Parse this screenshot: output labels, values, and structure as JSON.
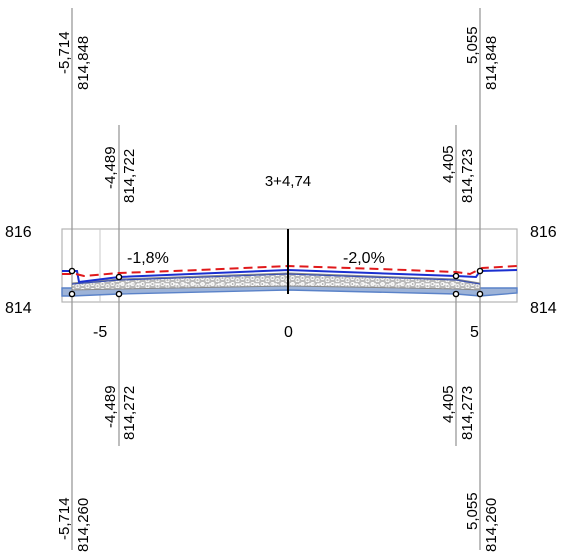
{
  "station": "3+4,74",
  "slopes": {
    "left": "-1,8%",
    "right": "-2,0%"
  },
  "elevation_ticks": {
    "top": "816",
    "bottom": "814"
  },
  "offset_ticks": {
    "left": "-5",
    "center": "0",
    "right": "5"
  },
  "top_labels": {
    "outer_left": {
      "offset": "-5,714",
      "elev": "814,848"
    },
    "inner_left": {
      "offset": "-4,489",
      "elev": "814,722"
    },
    "inner_right": {
      "offset": "4,405",
      "elev": "814,723"
    },
    "outer_right": {
      "offset": "5,055",
      "elev": "814,848"
    }
  },
  "bottom_labels": {
    "outer_left": {
      "offset": "-5,714",
      "elev": "814,260"
    },
    "inner_left": {
      "offset": "-4,489",
      "elev": "814,272"
    },
    "inner_right": {
      "offset": "4,405",
      "elev": "814,273"
    },
    "outer_right": {
      "offset": "5,055",
      "elev": "814,260"
    }
  },
  "colors": {
    "frame": "#b4b4b4",
    "vertical_lines": "#9a9a9a",
    "design_line": "#1a2fd0",
    "existing_ground": "#e0191b",
    "pavement_fill": "#a9a9a9",
    "subgrade": "#5a82c8",
    "centerline": "#000000"
  }
}
